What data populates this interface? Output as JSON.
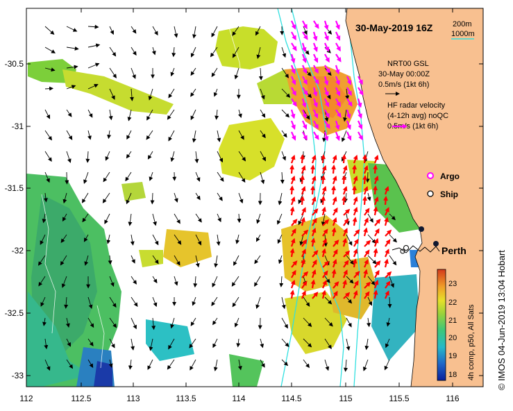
{
  "map": {
    "title": "30-May-2019 16Z",
    "isobath_labels": [
      "200m",
      "1000m"
    ],
    "x_ticks": [
      "112",
      "112.5",
      "113",
      "113.5",
      "114",
      "114.5",
      "115",
      "115.5",
      "116"
    ],
    "y_ticks": [
      "-30.5",
      "-31",
      "-31.5",
      "-32",
      "-32.5",
      "-33"
    ],
    "legend": {
      "gsl_line1": "NRT00 GSL",
      "gsl_line2": "30-May 00:00Z",
      "gsl_line3": "0.5m/s (1kt 6h)",
      "hf_line1": "HF radar velocity",
      "hf_line2": "(4-12h avg) noQC",
      "hf_line3": "0.5m/s (1kt 6h)",
      "argo_label": "Argo",
      "ship_label": "Ship"
    },
    "city_label": "Perth",
    "colorbar": {
      "ticks": [
        "23",
        "22",
        "21",
        "20",
        "19",
        "18"
      ],
      "caption": "4h comp, p50, All Sats"
    },
    "credit": "© IMOS 04-Jun-2019 13:04 Hobart",
    "colors": {
      "land": "#f8c090",
      "isobath": "#30e0e0",
      "hf_vector": "#ff00ff",
      "hf_vector_south": "#ff0000",
      "gsl_vector": "#000000",
      "argo_marker": "#ff00ff",
      "ship_marker": "#000000"
    }
  }
}
